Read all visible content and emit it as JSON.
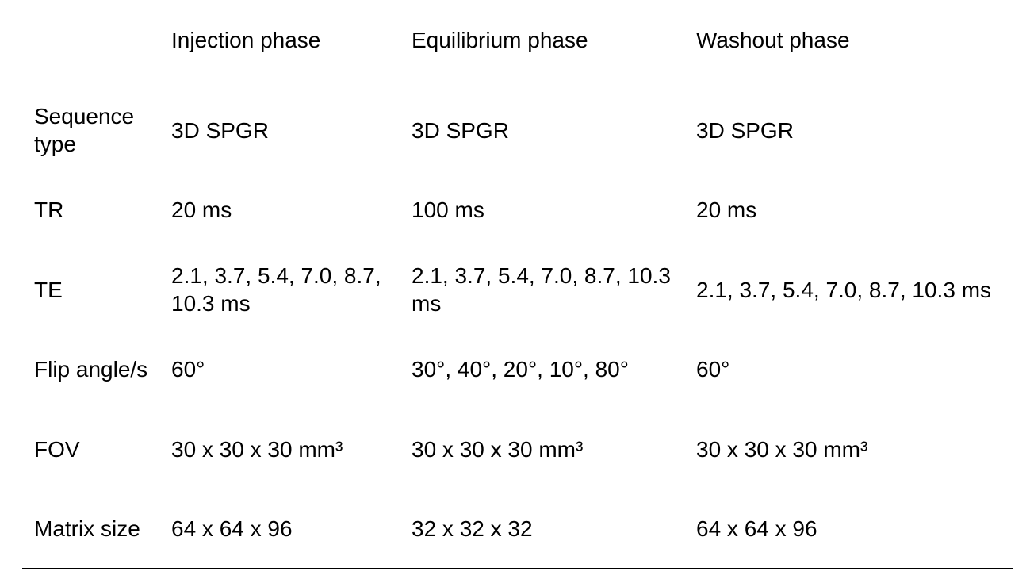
{
  "table": {
    "header": [
      "Injection phase",
      "Equilibrium phase",
      "Washout phase"
    ],
    "rows": [
      {
        "label": "Sequence type",
        "cells": [
          "3D SPGR",
          "3D SPGR",
          "3D SPGR"
        ]
      },
      {
        "label": "TR",
        "cells": [
          "20 ms",
          "100 ms",
          "20 ms"
        ]
      },
      {
        "label": "TE",
        "cells": [
          "2.1, 3.7, 5.4, 7.0, 8.7, 10.3 ms",
          "2.1, 3.7, 5.4, 7.0, 8.7, 10.3 ms",
          "2.1, 3.7, 5.4, 7.0, 8.7, 10.3 ms"
        ]
      },
      {
        "label": "Flip angle/s",
        "cells": [
          "60°",
          "30°, 40°, 20°, 10°, 80°",
          "60°"
        ]
      },
      {
        "label": "FOV",
        "cells": [
          "30 x 30 x 30 mm³",
          "30 x 30 x 30 mm³",
          "30 x 30 x 30 mm³"
        ]
      },
      {
        "label": "Matrix size",
        "cells": [
          "64 x 64 x 96",
          "32 x 32 x 32",
          "64 x 64 x 96"
        ]
      }
    ]
  }
}
